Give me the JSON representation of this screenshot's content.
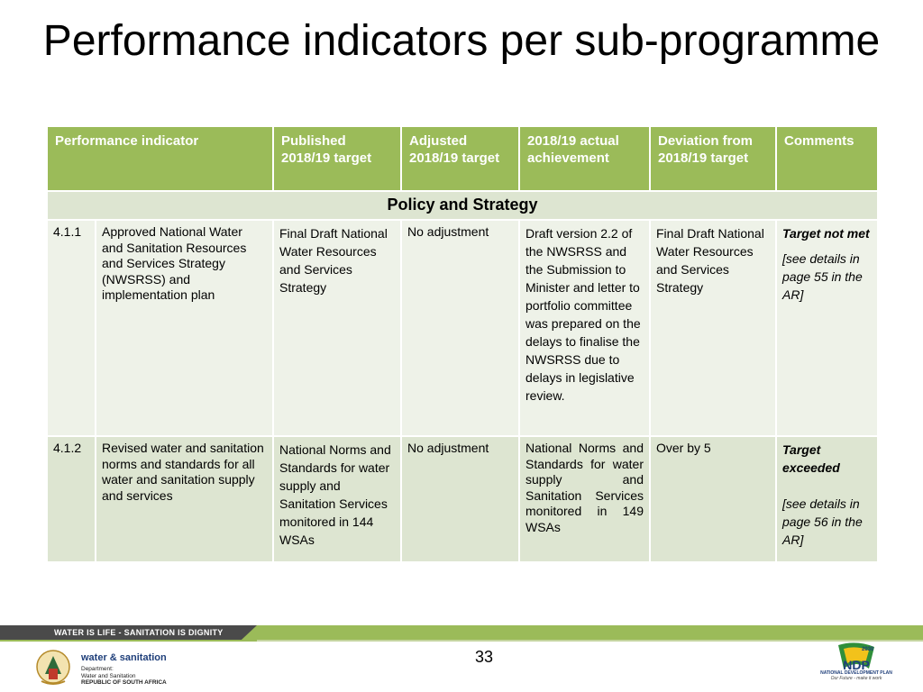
{
  "title": "Performance indicators per sub-programme",
  "table": {
    "headers": [
      "Performance indicator",
      "Published 2018/19 target",
      "Adjusted 2018/19 target",
      "2018/19 actual achievement",
      "Deviation from 2018/19 target",
      "Comments"
    ],
    "section": "Policy and Strategy",
    "rows": [
      {
        "id": "4.1.1",
        "indicator": "Approved National Water and Sanitation Resources and Services Strategy (NWSRSS) and implementation plan",
        "published_target": "Final Draft National Water Resources and Services Strategy",
        "adjusted_target": "No adjustment",
        "actual": "Draft version 2.2 of the NWSRSS and the Submission to Minister and letter to portfolio committee was prepared on the delays to finalise the NWSRSS due to delays in legislative review.",
        "deviation": "Final Draft National Water Resources and Services Strategy",
        "comment_status": "Target not met",
        "comment_ref": "[see details in page  55  in the AR]"
      },
      {
        "id": "4.1.2",
        "indicator": "Revised water and sanitation norms and standards for all water and sanitation supply and services",
        "published_target": "National Norms and Standards for water supply and Sanitation Services monitored in 144 WSAs",
        "adjusted_target": "No adjustment",
        "actual": "National Norms and Standards for water supply and Sanitation Services monitored in 149 WSAs",
        "deviation": "Over by 5",
        "comment_status": "Target exceeded",
        "comment_ref": "[see details in page  56  in the AR]"
      }
    ]
  },
  "footer": {
    "slogan": "WATER IS LIFE - SANITATION IS DIGNITY",
    "page_number": "33",
    "dept_name": "water & sanitation",
    "dept_line1": "Department:",
    "dept_line2": "Water and Sanitation",
    "dept_line3": "REPUBLIC OF SOUTH AFRICA",
    "ndp_badge": "2030",
    "ndp_logo": "NDP",
    "ndp_name": "NATIONAL DEVELOPMENT PLAN",
    "ndp_tagline": "Our Future - make it work"
  },
  "colors": {
    "header_green": "#9bbb59",
    "row_light": "#eef2e8",
    "row_mid": "#dde5d1",
    "dept_blue": "#1f3f7a"
  }
}
